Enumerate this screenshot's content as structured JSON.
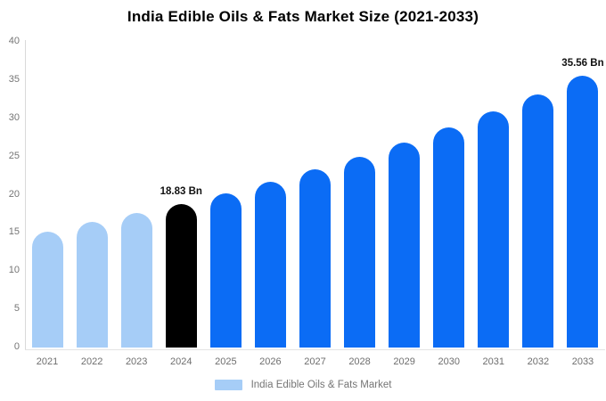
{
  "chart_data": {
    "type": "bar",
    "title": "India Edible Oils & Fats Market Size (2021-2033)",
    "xlabel": "",
    "ylabel": "",
    "unit": "Bn",
    "categories": [
      "2021",
      "2022",
      "2023",
      "2024",
      "2025",
      "2026",
      "2027",
      "2028",
      "2029",
      "2030",
      "2031",
      "2032",
      "2033"
    ],
    "values": [
      15.2,
      16.4,
      17.6,
      18.83,
      20.2,
      21.7,
      23.3,
      25.0,
      26.8,
      28.8,
      30.9,
      33.1,
      35.56
    ],
    "bar_colors": [
      "#a6cdf7",
      "#a6cdf7",
      "#a6cdf7",
      "#000000",
      "#0b6cf5",
      "#0b6cf5",
      "#0b6cf5",
      "#0b6cf5",
      "#0b6cf5",
      "#0b6cf5",
      "#0b6cf5",
      "#0b6cf5",
      "#0b6cf5"
    ],
    "annotations": [
      {
        "index": 3,
        "category": "2024",
        "text": "18.83 Bn"
      },
      {
        "index": 12,
        "category": "2033",
        "text": "35.56 Bn"
      }
    ],
    "ylim": [
      0,
      40
    ],
    "yticks": [
      0,
      5,
      10,
      15,
      20,
      25,
      30,
      35,
      40
    ],
    "grid": false,
    "legend_position": "bottom"
  },
  "legend": {
    "label": "India Edible Oils & Fats Market",
    "swatch_color": "#a6cdf7"
  },
  "colors": {
    "light_blue": "#a6cdf7",
    "bright_blue": "#0b6cf5",
    "highlight_black": "#000000",
    "axis_line": "#d9d9d9",
    "tick_label": "#757575",
    "title_text": "#000000"
  }
}
